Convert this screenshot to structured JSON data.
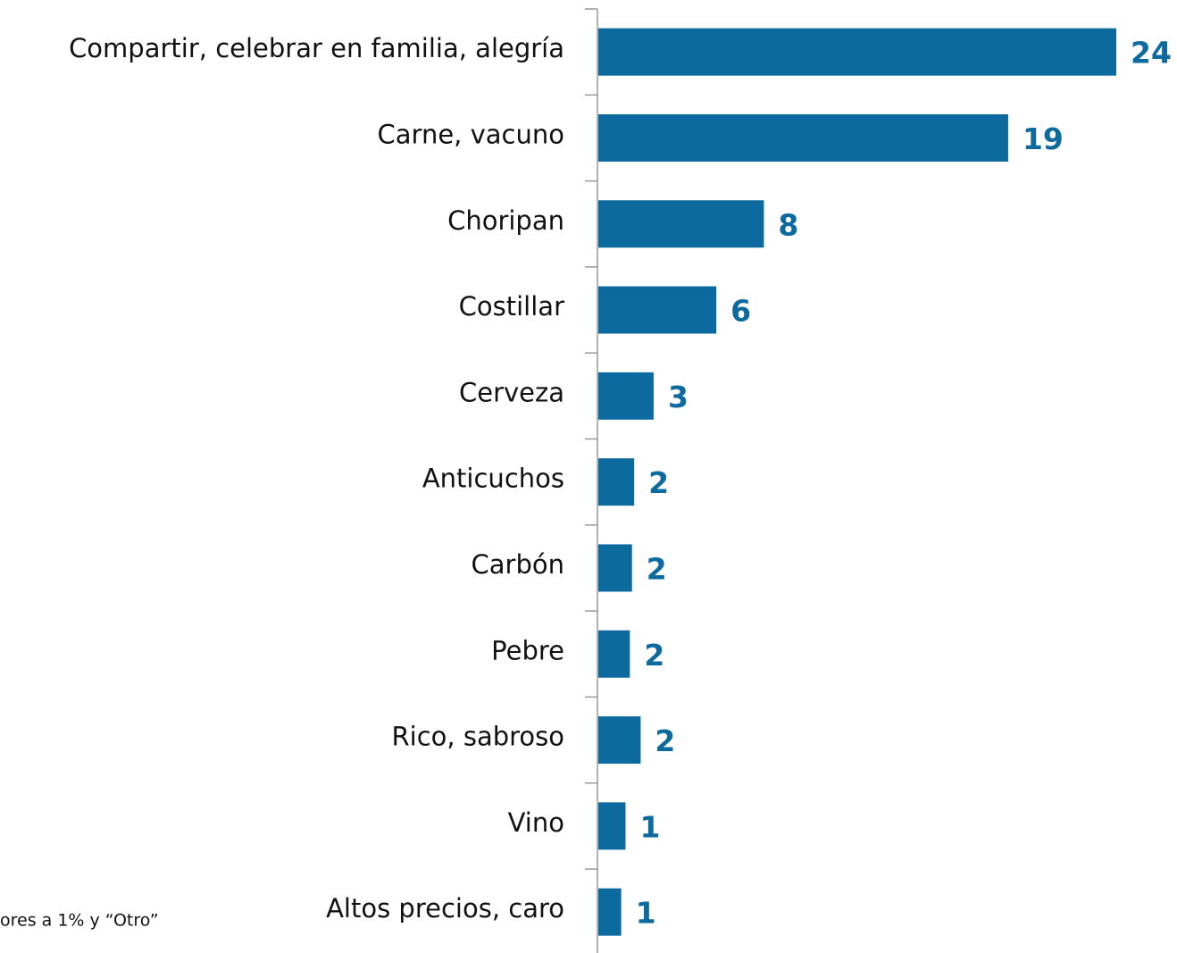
{
  "chart_data": {
    "type": "bar",
    "orientation": "horizontal",
    "categories": [
      "Compartir, celebrar en familia, alegría",
      "Carne, vacuno",
      "Choripan",
      "Costillar",
      "Cerveza",
      "Anticuchos",
      "Carbón",
      "Pebre",
      "Rico, sabroso",
      "Vino",
      "Altos precios, caro"
    ],
    "values": [
      24,
      19,
      7.7,
      5.5,
      2.6,
      1.7,
      1.6,
      1.5,
      2.0,
      1.3,
      1.1
    ],
    "value_labels": [
      "24",
      "19",
      "8",
      "6",
      "3",
      "2",
      "2",
      "2",
      "2",
      "1",
      "1"
    ],
    "color": "#0d6a9e",
    "note": "ores a 1% y “Otro”"
  }
}
